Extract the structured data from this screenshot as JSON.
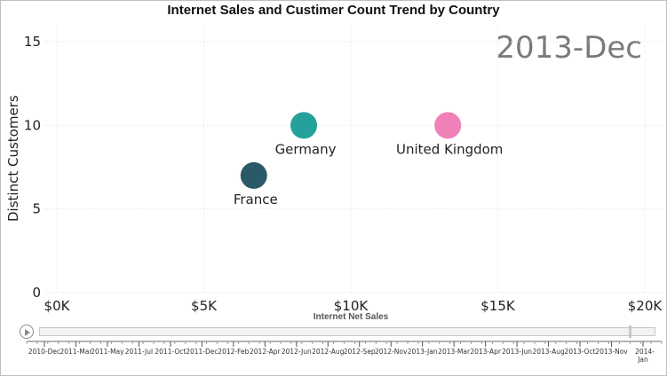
{
  "chart_data": {
    "type": "scatter",
    "title": "Internet Sales and Custimer Count Trend by Country",
    "period_label": "2013-Dec",
    "xlabel": "Internet Net Sales",
    "ylabel": "Distinct Customers",
    "xlim": [
      0,
      20000
    ],
    "ylim": [
      0,
      15
    ],
    "x_ticks": [
      "$0K",
      "$5K",
      "$10K",
      "$15K",
      "$20K"
    ],
    "y_ticks": [
      "0",
      "5",
      "10",
      "15"
    ],
    "grid": true,
    "series": [
      {
        "name": "France",
        "x": 6700,
        "y": 7,
        "color": "#2a5a67"
      },
      {
        "name": "Germany",
        "x": 8400,
        "y": 10,
        "color": "#23a19a"
      },
      {
        "name": "United Kingdom",
        "x": 13300,
        "y": 10,
        "color": "#f080b8"
      }
    ],
    "timeline": {
      "labels": [
        "2010-Dec",
        "2011-Mar",
        "2011-May",
        "2011-Jul",
        "2011-Oct",
        "2011-Dec",
        "2012-Feb",
        "2012-Apr",
        "2012-Jun",
        "2012-Aug",
        "2012-Sep",
        "2012-Nov",
        "2013-Jan",
        "2013-Mar",
        "2013-Apr",
        "2013-Jun",
        "2013-Aug",
        "2013-Oct",
        "2013-Nov",
        "2014-Jan"
      ],
      "current": "2013-Dec"
    }
  }
}
